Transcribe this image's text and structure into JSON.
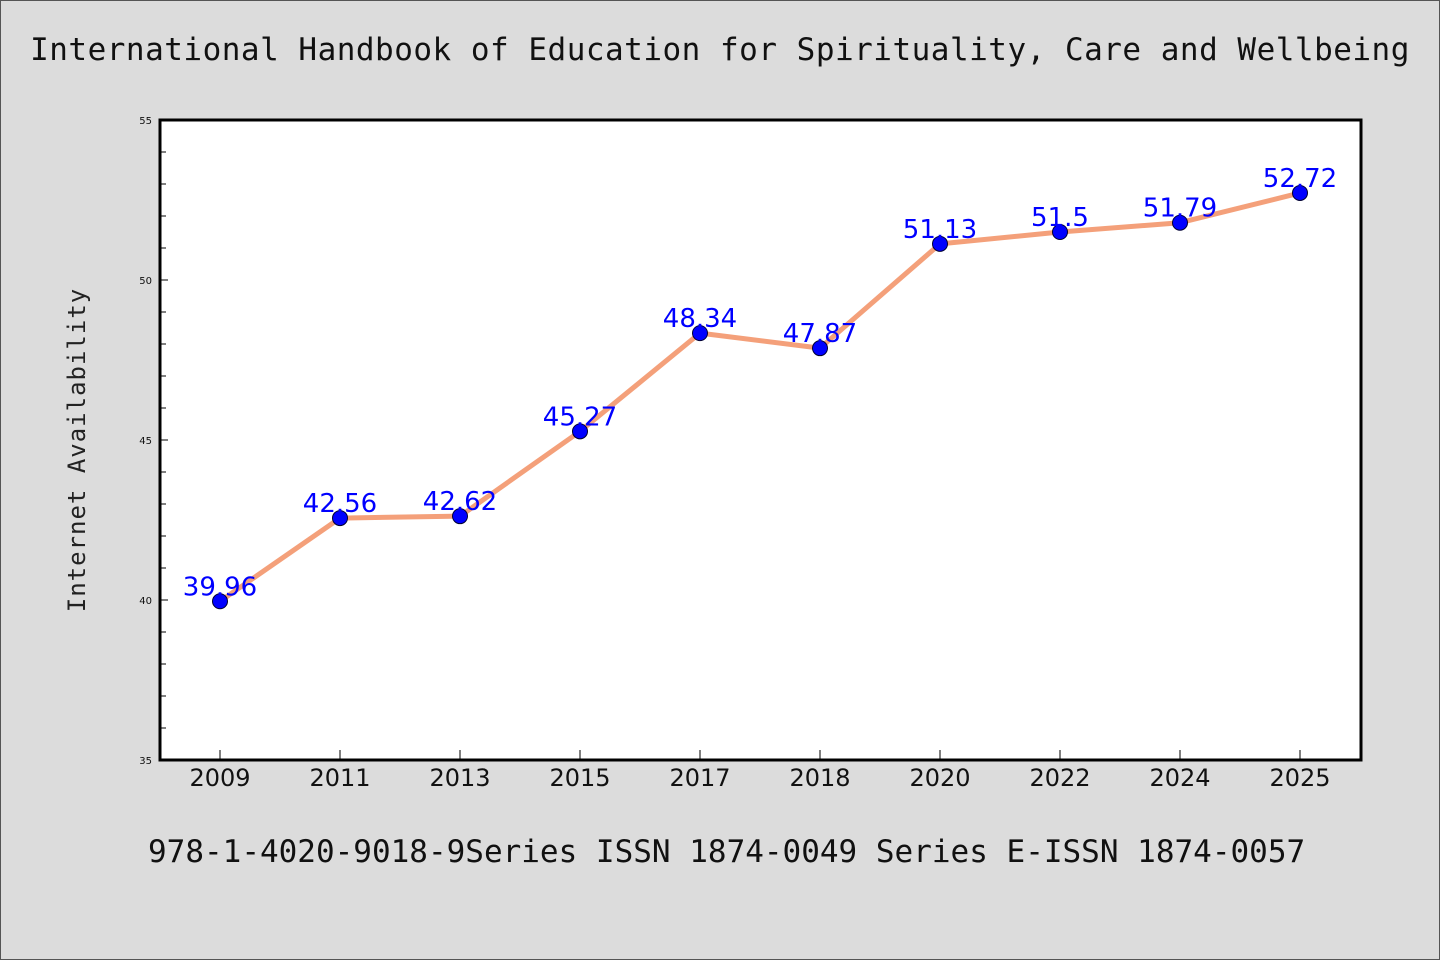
{
  "chart_data": {
    "type": "line",
    "title": "International Handbook of Education for Spirituality, Care and Wellbeing",
    "xlabel": "",
    "ylabel": "Internet Availability",
    "categories": [
      "2009",
      "2011",
      "2013",
      "2015",
      "2017",
      "2018",
      "2020",
      "2022",
      "2024",
      "2025"
    ],
    "values": [
      39.96,
      42.56,
      42.62,
      45.27,
      48.34,
      47.87,
      51.13,
      51.5,
      51.79,
      52.72
    ],
    "data_labels": [
      "39.96",
      "42.56",
      "42.62",
      "45.27",
      "48.34",
      "47.87",
      "51.13",
      "51.5",
      "51.79",
      "52.72"
    ],
    "ylim": [
      35,
      55
    ],
    "y_ticks": [
      "35",
      "40",
      "45",
      "50",
      "55"
    ],
    "grid": false,
    "line_color": "#f4a07a",
    "marker_color": "#0000ff",
    "label_color": "#0000ff",
    "footer": "978-1-4020-9018-9Series ISSN 1874-0049 Series E-ISSN 1874-0057"
  }
}
